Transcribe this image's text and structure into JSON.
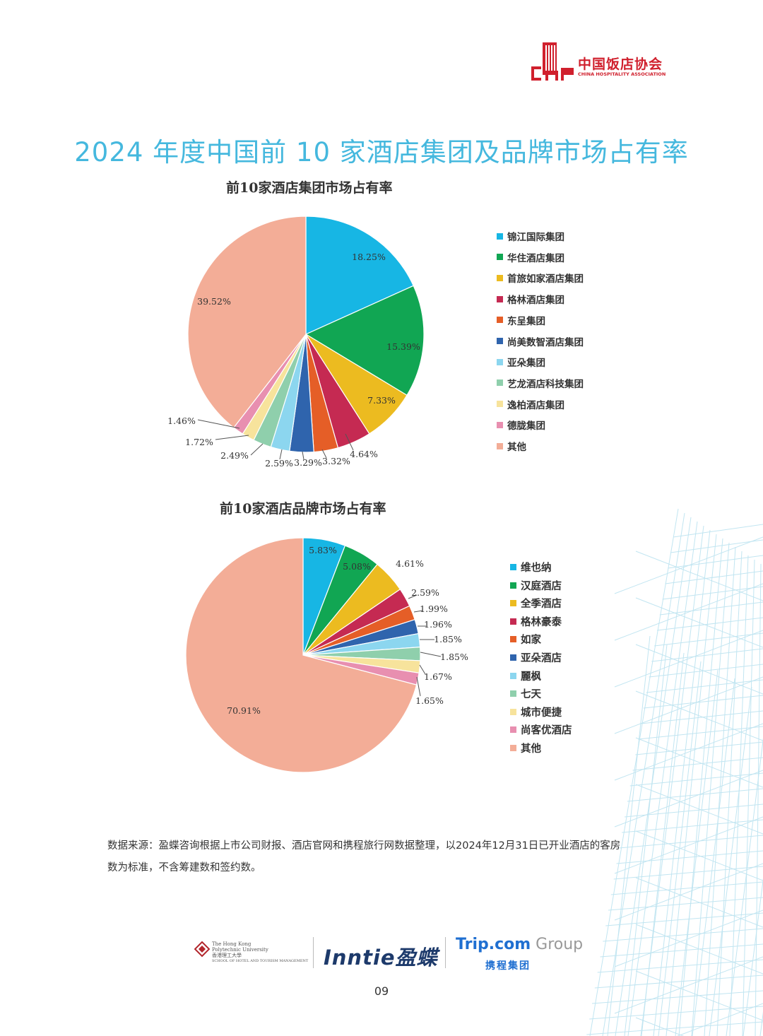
{
  "header": {
    "logo_cn": "中国饭店协会",
    "logo_en": "CHINA HOSPITALITY ASSOCIATION",
    "page_title": "2024 年度中国前 10 家酒店集团及品牌市场占有率"
  },
  "chart_data": [
    {
      "type": "pie",
      "title": "前10家酒店集团市场占有率",
      "legend_position": "right",
      "series": [
        {
          "name": "锦江国际集团",
          "value": 18.25,
          "label": "18.25%",
          "color": "#17b6e4"
        },
        {
          "name": "华住酒店集团",
          "value": 15.39,
          "label": "15.39%",
          "color": "#11a653"
        },
        {
          "name": "首旅如家酒店集团",
          "value": 7.33,
          "label": "7.33%",
          "color": "#ecbb20"
        },
        {
          "name": "格林酒店集团",
          "value": 4.64,
          "label": "4.64%",
          "color": "#c52a52"
        },
        {
          "name": "东呈集团",
          "value": 3.32,
          "label": "3.32%",
          "color": "#e55e27"
        },
        {
          "name": "尚美数智酒店集团",
          "value": 3.29,
          "label": "3.29%",
          "color": "#2f64ad"
        },
        {
          "name": "亚朵集团",
          "value": 2.59,
          "label": "2.59%",
          "color": "#8cd6ef"
        },
        {
          "name": "艺龙酒店科技集团",
          "value": 2.49,
          "label": "2.49%",
          "color": "#8fcfac"
        },
        {
          "name": "逸柏酒店集团",
          "value": 1.72,
          "label": "1.72%",
          "color": "#f7e39c"
        },
        {
          "name": "德胧集团",
          "value": 1.46,
          "label": "1.46%",
          "color": "#e88fb0"
        },
        {
          "name": "其他",
          "value": 39.52,
          "label": "39.52%",
          "color": "#f3ad97"
        }
      ]
    },
    {
      "type": "pie",
      "title": "前10家酒店品牌市场占有率",
      "legend_position": "right",
      "series": [
        {
          "name": "维也纳",
          "value": 5.83,
          "label": "5.83%",
          "color": "#17b6e4"
        },
        {
          "name": "汉庭酒店",
          "value": 5.08,
          "label": "5.08%",
          "color": "#11a653"
        },
        {
          "name": "全季酒店",
          "value": 4.61,
          "label": "4.61%",
          "color": "#ecbb20"
        },
        {
          "name": "格林豪泰",
          "value": 2.59,
          "label": "2.59%",
          "color": "#c52a52"
        },
        {
          "name": "如家",
          "value": 1.99,
          "label": "1.99%",
          "color": "#e55e27"
        },
        {
          "name": "亚朵酒店",
          "value": 1.96,
          "label": "1.96%",
          "color": "#2f64ad"
        },
        {
          "name": "麗枫",
          "value": 1.85,
          "label": "1.85%",
          "color": "#8cd6ef"
        },
        {
          "name": "七天",
          "value": 1.85,
          "label": "1.85%",
          "color": "#8fcfac"
        },
        {
          "name": "城市便捷",
          "value": 1.67,
          "label": "1.67%",
          "color": "#f7e39c"
        },
        {
          "name": "尚客优酒店",
          "value": 1.65,
          "label": "1.65%",
          "color": "#e88fb0"
        },
        {
          "name": "其他",
          "value": 70.91,
          "label": "70.91%",
          "color": "#f3ad97"
        }
      ]
    }
  ],
  "source_note": {
    "line1": "数据来源：盈蝶咨询根据上市公司财报、酒店官网和携程旅行网数据整理，以2024年12月31日已开业酒店的客房",
    "line2": "数为标准，不含筹建数和签约数。"
  },
  "footer": {
    "polyu_line1": "The Hong Kong",
    "polyu_line2": "Polytechnic University",
    "polyu_line3": "香港理工大學",
    "polyu_line4": "SCHOOL OF HOTEL AND TOURISM MANAGEMENT",
    "inntie": "Inntie盈蝶",
    "trip_en": "Trip.com",
    "trip_group": " Group",
    "trip_cn": "携程集团",
    "page_number": "09"
  }
}
